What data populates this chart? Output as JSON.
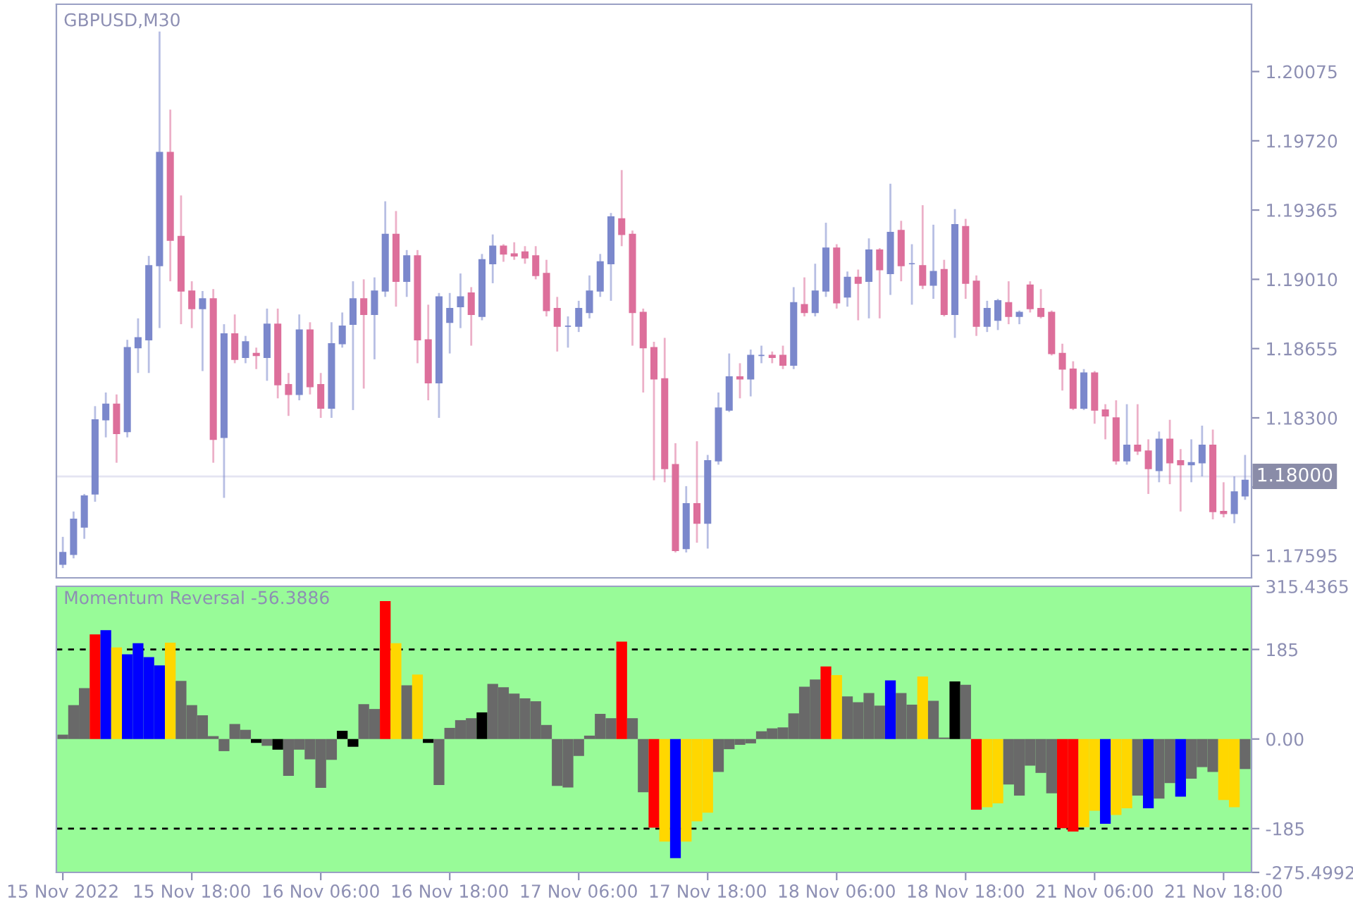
{
  "chart_data": [
    {
      "type": "candlestick",
      "title": "GBPUSD,M30",
      "tick_labels": "y",
      "categories": [
        null,
        null,
        null,
        null,
        null,
        null,
        null,
        null,
        null,
        null,
        null,
        null,
        null,
        null,
        null,
        null,
        null,
        null,
        null,
        null,
        null,
        null,
        null,
        null,
        null,
        null,
        null,
        null,
        null,
        null,
        null,
        null,
        null,
        null,
        null,
        null,
        null,
        null,
        null,
        null,
        null,
        null,
        null,
        null,
        null,
        null,
        null,
        null,
        null,
        null,
        null,
        null,
        null,
        null,
        null,
        null,
        null,
        null,
        null,
        null,
        null,
        null,
        null,
        null,
        null,
        null,
        null,
        null,
        null,
        null,
        null,
        null,
        null,
        null,
        null,
        null,
        null,
        null,
        null,
        null,
        null,
        null,
        null,
        null,
        null,
        null,
        null,
        null,
        null,
        null,
        null,
        null,
        null,
        null,
        null,
        null,
        null,
        null,
        null,
        null,
        null,
        null,
        null,
        null,
        null,
        null,
        null,
        null,
        null,
        null,
        null
      ],
      "ohlc": [
        [
          1.1755,
          1.1769,
          1.1753,
          1.1761
        ],
        [
          1.176,
          1.1782,
          1.1758,
          1.1778
        ],
        [
          1.1774,
          1.1791,
          1.1768,
          1.179
        ],
        [
          1.1791,
          1.1836,
          1.1787,
          1.1829
        ],
        [
          1.1829,
          1.1843,
          1.182,
          1.1837
        ],
        [
          1.1837,
          1.1842,
          1.1807,
          1.1822
        ],
        [
          1.1823,
          1.187,
          1.182,
          1.1866
        ],
        [
          1.1866,
          1.1881,
          1.1853,
          1.1871
        ],
        [
          1.187,
          1.1913,
          1.1853,
          1.1908
        ],
        [
          1.1908,
          1.2028,
          1.1876,
          1.1966
        ],
        [
          1.1966,
          1.1988,
          1.19,
          1.1921
        ],
        [
          1.1923,
          1.1944,
          1.1878,
          1.1895
        ],
        [
          1.1895,
          1.19,
          1.1876,
          1.1886
        ],
        [
          1.1886,
          1.1895,
          1.1854,
          1.1891
        ],
        [
          1.1891,
          1.1896,
          1.1807,
          1.1819
        ],
        [
          1.182,
          1.1878,
          1.1789,
          1.1873
        ],
        [
          1.1873,
          1.1883,
          1.1858,
          1.186
        ],
        [
          1.1861,
          1.1872,
          1.1858,
          1.1869
        ],
        [
          1.1863,
          1.1866,
          1.1855,
          1.1862
        ],
        [
          1.1861,
          1.1886,
          1.1849,
          1.1878
        ],
        [
          1.1878,
          1.1886,
          1.184,
          1.1847
        ],
        [
          1.1847,
          1.1853,
          1.1831,
          1.1842
        ],
        [
          1.1842,
          1.1883,
          1.1839,
          1.1875
        ],
        [
          1.1875,
          1.1879,
          1.1842,
          1.1846
        ],
        [
          1.1847,
          1.1853,
          1.183,
          1.1835
        ],
        [
          1.1835,
          1.1879,
          1.183,
          1.1868
        ],
        [
          1.1868,
          1.1884,
          1.1866,
          1.1877
        ],
        [
          1.1878,
          1.19,
          1.1834,
          1.1891
        ],
        [
          1.1891,
          1.1901,
          1.1845,
          1.1883
        ],
        [
          1.1883,
          1.1902,
          1.186,
          1.1895
        ],
        [
          1.1895,
          1.1941,
          1.1892,
          1.1924
        ],
        [
          1.1924,
          1.1936,
          1.1887,
          1.19
        ],
        [
          1.19,
          1.1916,
          1.1892,
          1.1913
        ],
        [
          1.1913,
          1.1916,
          1.1858,
          1.187
        ],
        [
          1.187,
          1.1888,
          1.1839,
          1.1848
        ],
        [
          1.1848,
          1.1894,
          1.183,
          1.1892
        ],
        [
          1.1879,
          1.1894,
          1.1863,
          1.1886
        ],
        [
          1.1887,
          1.1904,
          1.1876,
          1.1892
        ],
        [
          1.1894,
          1.1897,
          1.1867,
          1.1883
        ],
        [
          1.1882,
          1.1914,
          1.188,
          1.1911
        ],
        [
          1.1909,
          1.1924,
          1.1899,
          1.1918
        ],
        [
          1.1918,
          1.1919,
          1.191,
          1.1914
        ],
        [
          1.1914,
          1.192,
          1.1911,
          1.1913
        ],
        [
          1.1915,
          1.1918,
          1.1909,
          1.1912
        ],
        [
          1.1913,
          1.1918,
          1.1901,
          1.1903
        ],
        [
          1.1904,
          1.1911,
          1.1882,
          1.1885
        ],
        [
          1.1886,
          1.1892,
          1.1864,
          1.1877
        ],
        [
          1.1877,
          1.1882,
          1.1866,
          1.1877
        ],
        [
          1.1877,
          1.189,
          1.1874,
          1.1886
        ],
        [
          1.1884,
          1.1903,
          1.1881,
          1.1895
        ],
        [
          1.1895,
          1.1914,
          1.1892,
          1.191
        ],
        [
          1.1909,
          1.1935,
          1.189,
          1.1933
        ],
        [
          1.1932,
          1.1957,
          1.1918,
          1.1924
        ],
        [
          1.1924,
          1.1926,
          1.1867,
          1.1884
        ],
        [
          1.1884,
          1.1886,
          1.1843,
          1.1866
        ],
        [
          1.1866,
          1.1869,
          1.1798,
          1.185
        ],
        [
          1.185,
          1.1871,
          1.1797,
          1.1804
        ],
        [
          1.1806,
          1.1817,
          1.1761,
          1.1762
        ],
        [
          1.1763,
          1.1795,
          1.1761,
          1.1786
        ],
        [
          1.1786,
          1.1818,
          1.1766,
          1.1776
        ],
        [
          1.1776,
          1.1811,
          1.1763,
          1.1808
        ],
        [
          1.1808,
          1.1843,
          1.1806,
          1.1835
        ],
        [
          1.1834,
          1.1863,
          1.1833,
          1.1851
        ],
        [
          1.1851,
          1.1858,
          1.184,
          1.185
        ],
        [
          1.185,
          1.1865,
          1.1841,
          1.1862
        ],
        [
          1.1862,
          1.1867,
          1.1858,
          1.1862
        ],
        [
          1.1862,
          1.1864,
          1.1858,
          1.1861
        ],
        [
          1.1862,
          1.1867,
          1.1855,
          1.1857
        ],
        [
          1.1857,
          1.1897,
          1.1855,
          1.1889
        ],
        [
          1.1888,
          1.1902,
          1.1882,
          1.1884
        ],
        [
          1.1884,
          1.1909,
          1.1882,
          1.1895
        ],
        [
          1.1895,
          1.193,
          1.1892,
          1.1917
        ],
        [
          1.1917,
          1.1919,
          1.1886,
          1.1889
        ],
        [
          1.1892,
          1.1905,
          1.1887,
          1.1902
        ],
        [
          1.1902,
          1.1906,
          1.188,
          1.1899
        ],
        [
          1.19,
          1.1922,
          1.1881,
          1.1916
        ],
        [
          1.1916,
          1.1917,
          1.1881,
          1.1906
        ],
        [
          1.1904,
          1.195,
          1.1893,
          1.1925
        ],
        [
          1.1926,
          1.1931,
          1.19,
          1.1908
        ],
        [
          1.1909,
          1.1919,
          1.1888,
          1.1909
        ],
        [
          1.1908,
          1.1939,
          1.1896,
          1.1898
        ],
        [
          1.1898,
          1.1929,
          1.1891,
          1.1905
        ],
        [
          1.1906,
          1.1911,
          1.1882,
          1.1883
        ],
        [
          1.1883,
          1.1937,
          1.1871,
          1.1929
        ],
        [
          1.1928,
          1.1932,
          1.1891,
          1.1899
        ],
        [
          1.19,
          1.1903,
          1.1872,
          1.1877
        ],
        [
          1.1877,
          1.189,
          1.1874,
          1.1886
        ],
        [
          1.188,
          1.1891,
          1.1875,
          1.189
        ],
        [
          1.1889,
          1.19,
          1.1878,
          1.1882
        ],
        [
          1.1882,
          1.1885,
          1.1878,
          1.1884
        ],
        [
          1.1898,
          1.19,
          1.1884,
          1.1886
        ],
        [
          1.1886,
          1.1896,
          1.1881,
          1.1882
        ],
        [
          1.1884,
          1.1885,
          1.1862,
          1.1863
        ],
        [
          1.1863,
          1.1868,
          1.1844,
          1.1855
        ],
        [
          1.1855,
          1.1859,
          1.1834,
          1.1835
        ],
        [
          1.1835,
          1.1855,
          1.1834,
          1.1853
        ],
        [
          1.1853,
          1.1854,
          1.1827,
          1.1834
        ],
        [
          1.1834,
          1.1837,
          1.1819,
          1.1831
        ],
        [
          1.183,
          1.1839,
          1.1806,
          1.1808
        ],
        [
          1.1808,
          1.1837,
          1.1806,
          1.1816
        ],
        [
          1.1816,
          1.1837,
          1.1811,
          1.1813
        ],
        [
          1.1813,
          1.1819,
          1.1791,
          1.1804
        ],
        [
          1.1803,
          1.1823,
          1.1797,
          1.1819
        ],
        [
          1.1819,
          1.1829,
          1.1796,
          1.1807
        ],
        [
          1.1808,
          1.1814,
          1.1782,
          1.1806
        ],
        [
          1.1806,
          1.1819,
          1.1797,
          1.1807
        ],
        [
          1.1807,
          1.1826,
          1.18,
          1.1816
        ],
        [
          1.1816,
          1.1824,
          1.1778,
          1.1782
        ],
        [
          1.1782,
          1.1797,
          1.1779,
          1.1781
        ],
        [
          1.1781,
          1.18,
          1.1776,
          1.1792
        ],
        [
          1.179,
          1.1811,
          1.1788,
          1.1798
        ]
      ],
      "colors": [
        "#7b88cc",
        "#7b88cc",
        "#7b88cc",
        "#7b88cc",
        "#7b88cc",
        "#dd6f9b",
        "#7b88cc",
        "#7b88cc",
        "#7b88cc",
        "#7b88cc",
        "#dd6f9b",
        "#dd6f9b",
        "#dd6f9b",
        "#7b88cc",
        "#dd6f9b",
        "#7b88cc",
        "#dd6f9b",
        "#7b88cc",
        "#dd6f9b",
        "#7b88cc",
        "#dd6f9b",
        "#dd6f9b",
        "#7b88cc",
        "#dd6f9b",
        "#dd6f9b",
        "#7b88cc",
        "#7b88cc",
        "#7b88cc",
        "#dd6f9b",
        "#7b88cc",
        "#7b88cc",
        "#dd6f9b",
        "#7b88cc",
        "#dd6f9b",
        "#dd6f9b",
        "#7b88cc",
        "#7b88cc",
        "#7b88cc",
        "#dd6f9b",
        "#7b88cc",
        "#7b88cc",
        "#dd6f9b",
        "#dd6f9b",
        "#dd6f9b",
        "#dd6f9b",
        "#dd6f9b",
        "#dd6f9b",
        "#7b88cc",
        "#7b88cc",
        "#7b88cc",
        "#7b88cc",
        "#7b88cc",
        "#dd6f9b",
        "#dd6f9b",
        "#dd6f9b",
        "#dd6f9b",
        "#dd6f9b",
        "#dd6f9b",
        "#7b88cc",
        "#dd6f9b",
        "#7b88cc",
        "#7b88cc",
        "#7b88cc",
        "#dd6f9b",
        "#7b88cc",
        "#7b88cc",
        "#dd6f9b",
        "#dd6f9b",
        "#7b88cc",
        "#dd6f9b",
        "#7b88cc",
        "#7b88cc",
        "#dd6f9b",
        "#7b88cc",
        "#dd6f9b",
        "#7b88cc",
        "#dd6f9b",
        "#7b88cc",
        "#dd6f9b",
        "#7b88cc",
        "#dd6f9b",
        "#7b88cc",
        "#dd6f9b",
        "#7b88cc",
        "#dd6f9b",
        "#dd6f9b",
        "#7b88cc",
        "#7b88cc",
        "#dd6f9b",
        "#7b88cc",
        "#dd6f9b",
        "#dd6f9b",
        "#dd6f9b",
        "#dd6f9b",
        "#dd6f9b",
        "#7b88cc",
        "#dd6f9b",
        "#dd6f9b",
        "#dd6f9b",
        "#7b88cc",
        "#dd6f9b",
        "#dd6f9b",
        "#7b88cc",
        "#dd6f9b",
        "#dd6f9b",
        "#7b88cc",
        "#7b88cc",
        "#dd6f9b",
        "#dd6f9b",
        "#7b88cc",
        "#7b88cc"
      ],
      "ylim": [
        1.1748,
        1.2042
      ],
      "yticks": [
        1.20075,
        {
          "value": 1.1972,
          "label": "1.19720"
        },
        1.19365,
        {
          "value": 1.1901,
          "label": "1.19010"
        },
        1.18655,
        {
          "value": 1.183,
          "label": "1.18300"
        },
        {
          "value": 1.17945,
          "label": null
        },
        1.17595
      ],
      "ref_lines": [
        {
          "axis": "y",
          "value": 1.18,
          "label": "1.18000",
          "color": "#e4e4f2"
        }
      ]
    },
    {
      "type": "bar",
      "title": "Momentum Reversal -56.3886",
      "categories": [
        "15 Nov 2022",
        null,
        null,
        null,
        null,
        null,
        null,
        null,
        null,
        null,
        null,
        null,
        "15 Nov 18:00",
        null,
        null,
        null,
        null,
        null,
        null,
        null,
        null,
        null,
        null,
        null,
        "16 Nov 06:00",
        null,
        null,
        null,
        null,
        null,
        null,
        null,
        null,
        null,
        null,
        null,
        "16 Nov 18:00",
        null,
        null,
        null,
        null,
        null,
        null,
        null,
        null,
        null,
        null,
        null,
        "17 Nov 06:00",
        null,
        null,
        null,
        null,
        null,
        null,
        null,
        null,
        null,
        null,
        null,
        "17 Nov 18:00",
        null,
        null,
        null,
        null,
        null,
        null,
        null,
        null,
        null,
        null,
        null,
        "18 Nov 06:00",
        null,
        null,
        null,
        null,
        null,
        null,
        null,
        null,
        null,
        null,
        null,
        "18 Nov 18:00",
        null,
        null,
        null,
        null,
        null,
        null,
        null,
        null,
        null,
        null,
        null,
        "21 Nov 06:00",
        null,
        null,
        null,
        null,
        null,
        null,
        null,
        null,
        null,
        null,
        null,
        "21 Nov 18:00",
        null,
        null
      ],
      "values": [
        9,
        70,
        105,
        216,
        225,
        189,
        175,
        198,
        169,
        152,
        199,
        120,
        70,
        49,
        6,
        -25,
        31,
        19,
        -8,
        -14,
        -22,
        -76,
        -22,
        -42,
        -101,
        -43,
        17,
        -16,
        72,
        62,
        285,
        198,
        111,
        133,
        -8,
        -95,
        23,
        39,
        43,
        55,
        114,
        107,
        94,
        84,
        78,
        29,
        -97,
        -100,
        -35,
        7,
        52,
        43,
        201,
        43,
        -110,
        -183,
        -212,
        -246,
        -212,
        -170,
        -152,
        -68,
        -21,
        -12,
        -9,
        16,
        22,
        24,
        53,
        108,
        123,
        150,
        132,
        88,
        76,
        95,
        69,
        121,
        95,
        71,
        129,
        79,
        3,
        119,
        112,
        -146,
        -141,
        -133,
        -94,
        -117,
        -55,
        -70,
        -112,
        -184,
        -191,
        -182,
        -148,
        -175,
        -157,
        -143,
        -117,
        -143,
        -123,
        -91,
        -119,
        -82,
        -58,
        -68,
        -126,
        -141,
        -62
      ],
      "colors": [
        "#696969",
        "#696969",
        "#696969",
        "#ff0000",
        "#0000ff",
        "#ffd700",
        "#0000ff",
        "#0000ff",
        "#0000ff",
        "#0000ff",
        "#ffd700",
        "#696969",
        "#696969",
        "#696969",
        "#696969",
        "#696969",
        "#696969",
        "#696969",
        "#000000",
        "#696969",
        "#000000",
        "#696969",
        "#696969",
        "#696969",
        "#696969",
        "#696969",
        "#000000",
        "#000000",
        "#696969",
        "#696969",
        "#ff0000",
        "#ffd700",
        "#696969",
        "#ffd700",
        "#000000",
        "#696969",
        "#696969",
        "#696969",
        "#696969",
        "#000000",
        "#696969",
        "#696969",
        "#696969",
        "#696969",
        "#696969",
        "#696969",
        "#696969",
        "#696969",
        "#696969",
        "#696969",
        "#696969",
        "#696969",
        "#ff0000",
        "#696969",
        "#696969",
        "#ff0000",
        "#ffd700",
        "#0000ff",
        "#ffd700",
        "#ffd700",
        "#ffd700",
        "#696969",
        "#696969",
        "#696969",
        "#696969",
        "#696969",
        "#696969",
        "#696969",
        "#696969",
        "#696969",
        "#696969",
        "#ff0000",
        "#ffd700",
        "#696969",
        "#696969",
        "#696969",
        "#696969",
        "#0000ff",
        "#696969",
        "#696969",
        "#ffd700",
        "#696969",
        "#696969",
        "#000000",
        "#696969",
        "#ff0000",
        "#ffd700",
        "#ffd700",
        "#696969",
        "#696969",
        "#696969",
        "#696969",
        "#696969",
        "#ff0000",
        "#ff0000",
        "#ffd700",
        "#ffd700",
        "#0000ff",
        "#ffd700",
        "#ffd700",
        "#696969",
        "#0000ff",
        "#696969",
        "#696969",
        "#0000ff",
        "#696969",
        "#696969",
        "#696969",
        "#ffd700",
        "#ffd700",
        "#696969"
      ],
      "ylim": [
        -275.4992,
        315.4365
      ],
      "yticks": [
        315.4365,
        185,
        {
          "value": 0,
          "label": "0.00"
        },
        -185,
        -275.4992
      ],
      "ref_lines": [
        {
          "axis": "y",
          "value": 185,
          "color": "#000000",
          "line_style": "dashed"
        },
        {
          "axis": "y",
          "value": -185,
          "color": "#000000",
          "line_style": "dashed"
        }
      ]
    }
  ]
}
